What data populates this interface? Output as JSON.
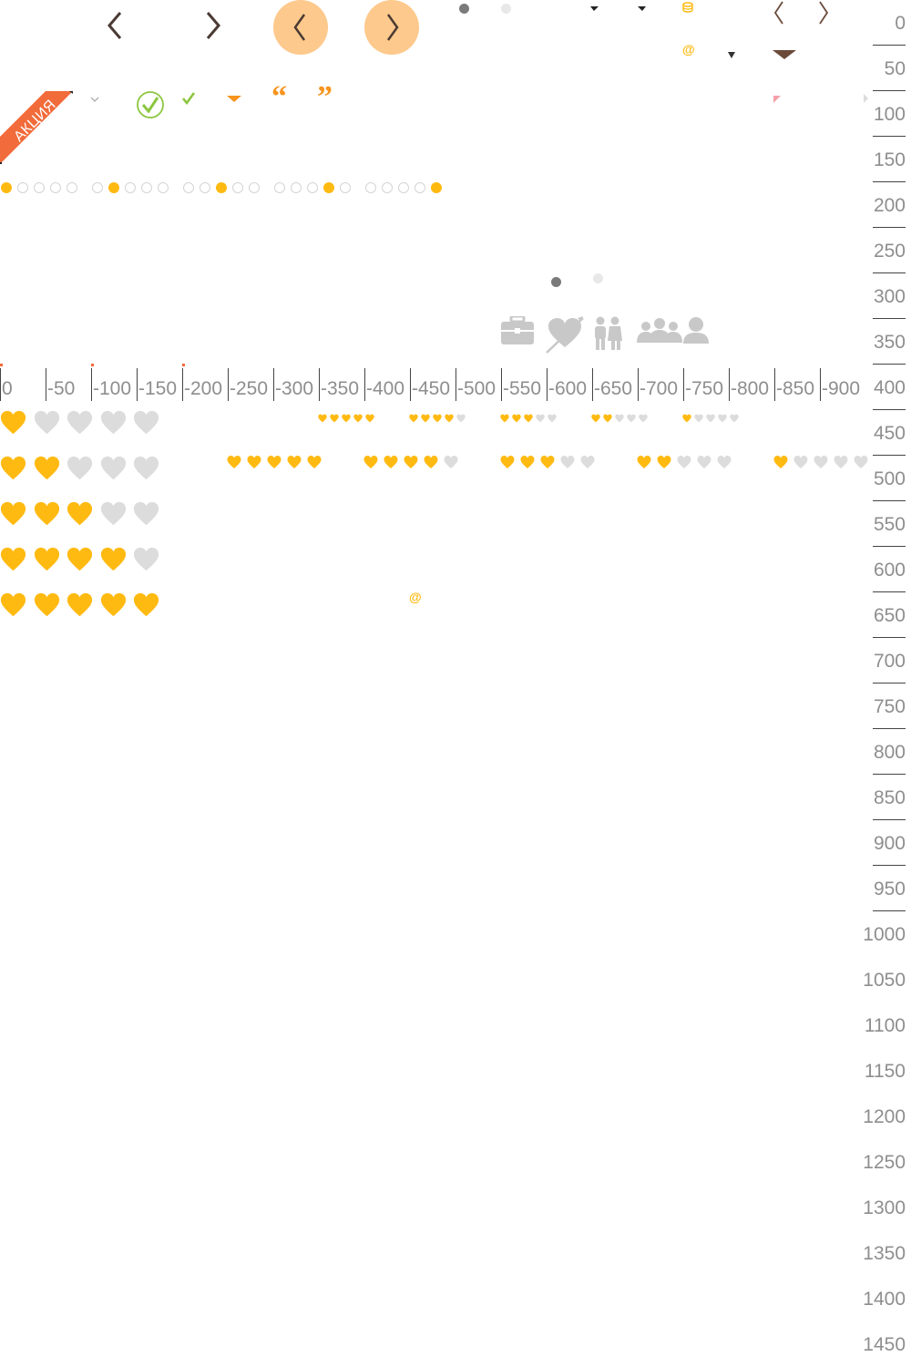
{
  "badge": {
    "text": "АКЦИЯ",
    "color": "#f26b3a"
  },
  "colors": {
    "heart_on": "#ffba12",
    "heart_off": "#dcdcdc",
    "orange_circle": "#fec98c",
    "arrow_dark": "#4a3a33",
    "check_green": "#8cc63f",
    "quote_orange": "#f7941d",
    "dot_dark": "#7a7a7a",
    "dot_light": "#e8e8e8",
    "ruler_text": "#8e8e8e",
    "icon_gray": "#c8c8c8",
    "brown": "#6b4a3a"
  },
  "icons": {
    "prev_plain": "chevron-left-icon",
    "next_plain": "chevron-right-icon",
    "prev_circle": "chevron-left-circle-icon",
    "next_circle": "chevron-right-circle-icon",
    "check_circle": "check-circle-icon",
    "check_small": "check-icon",
    "quote_open": "quote-open-icon",
    "quote_close": "quote-close-icon",
    "at_sign": "at-icon",
    "briefcase": "briefcase-icon",
    "heart_arrow": "heart-arrow-icon",
    "couple": "couple-icon",
    "group": "group-icon"
  },
  "glyphs": {
    "chev_left": "<",
    "chev_right": ">",
    "at": "@",
    "quote_open": "“",
    "quote_close": "”",
    "check": "✓",
    "caret": "▾",
    "db": "⛁"
  },
  "ruler_vertical": [
    "0",
    "50",
    "100",
    "150",
    "200",
    "250",
    "300",
    "350",
    "400",
    "450",
    "500",
    "550",
    "600",
    "650",
    "700",
    "750",
    "800",
    "850",
    "900",
    "950",
    "1000",
    "1050",
    "1100",
    "1150",
    "1200",
    "1250",
    "1300",
    "1350",
    "1400",
    "1450"
  ],
  "ruler_horizontal": [
    "0",
    "-50",
    "-100",
    "-150",
    "-200",
    "-250",
    "-300",
    "-350",
    "-400",
    "-450",
    "-500",
    "-550",
    "-600",
    "-650",
    "-700",
    "-750",
    "-800",
    "-850",
    "-900"
  ],
  "pagination_groups": [
    {
      "active": 1,
      "total": 5
    },
    {
      "active": 2,
      "total": 5
    },
    {
      "active": 3,
      "total": 5
    },
    {
      "active": 4,
      "total": 5
    },
    {
      "active": 5,
      "total": 5
    }
  ],
  "ratings_large": [
    1,
    2,
    3,
    4,
    5
  ],
  "ratings_medium": [
    5,
    4,
    3,
    2,
    1
  ],
  "ratings_small": [
    5,
    4,
    3,
    2,
    1
  ]
}
